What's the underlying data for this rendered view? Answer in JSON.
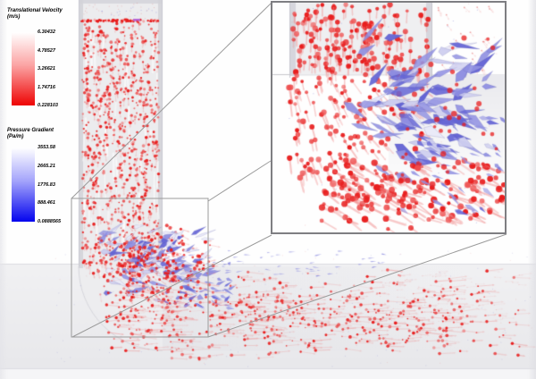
{
  "figure": {
    "description": "3D CFD visualization of particle-laden flow through a 90-degree pipe elbow, with a magnified inset of the elbow region linked by corner lines"
  },
  "legends": [
    {
      "id": "velocity",
      "title": "Translational Velocity",
      "unit": "(m/s)",
      "ticks": [
        "6.30432",
        "4.78527",
        "3.26621",
        "1.74716",
        "0.228103"
      ],
      "colors": [
        "#ffffff",
        "#fba4a4",
        "#ee0404"
      ]
    },
    {
      "id": "pressure",
      "title": "Pressure Gradient",
      "unit": "(Pa/m)",
      "ticks": [
        "3553.58",
        "2665.21",
        "1776.83",
        "888.461",
        "0.0888565"
      ],
      "colors": [
        "#ffffff",
        "#a4a4fb",
        "#0404ee"
      ]
    }
  ],
  "chart_data": {
    "type": "scatter",
    "title": "",
    "colorbars": [
      {
        "label": "Translational Velocity (m/s)",
        "min": 0.228103,
        "max": 6.30432,
        "ticks": [
          6.30432,
          4.78527,
          3.26621,
          1.74716,
          0.228103
        ],
        "colormap": "white-to-red"
      },
      {
        "label": "Pressure Gradient (Pa/m)",
        "min": 0.0888565,
        "max": 3553.58,
        "ticks": [
          3553.58,
          2665.21,
          1776.83,
          888.461,
          0.0888565
        ],
        "colormap": "white-to-blue"
      }
    ],
    "annotations": [
      "zoom inset of elbow region, top right, connected to source box by gray corner lines"
    ]
  },
  "scene": {
    "colors": {
      "particle_red": "#e81d1d",
      "particle_red_dark": "#d61414",
      "trail_pink": "rgba(238,128,128,0.5)",
      "arrow_blue_deep": "#6565d5",
      "arrow_blue_mid": "#9191e2",
      "arrow_blue_pale": "#cdcdef",
      "arrow_blue_white": "#e9e9f8",
      "pipe_fill": "#ececee",
      "pipe_edge": "#d6d6db",
      "floor_top": "#f1f1f3",
      "floor_bottom": "#e8e8eb",
      "injection_purple": "#b565d5",
      "link_line": "#9b9b9b",
      "inset_border": "#7e7e82"
    },
    "geometry": {
      "pipe_x": [
        88,
        182
      ],
      "zoom_box": [
        80,
        222,
        153,
        155
      ],
      "inset_rect": [
        303,
        1,
        264,
        261
      ]
    }
  }
}
